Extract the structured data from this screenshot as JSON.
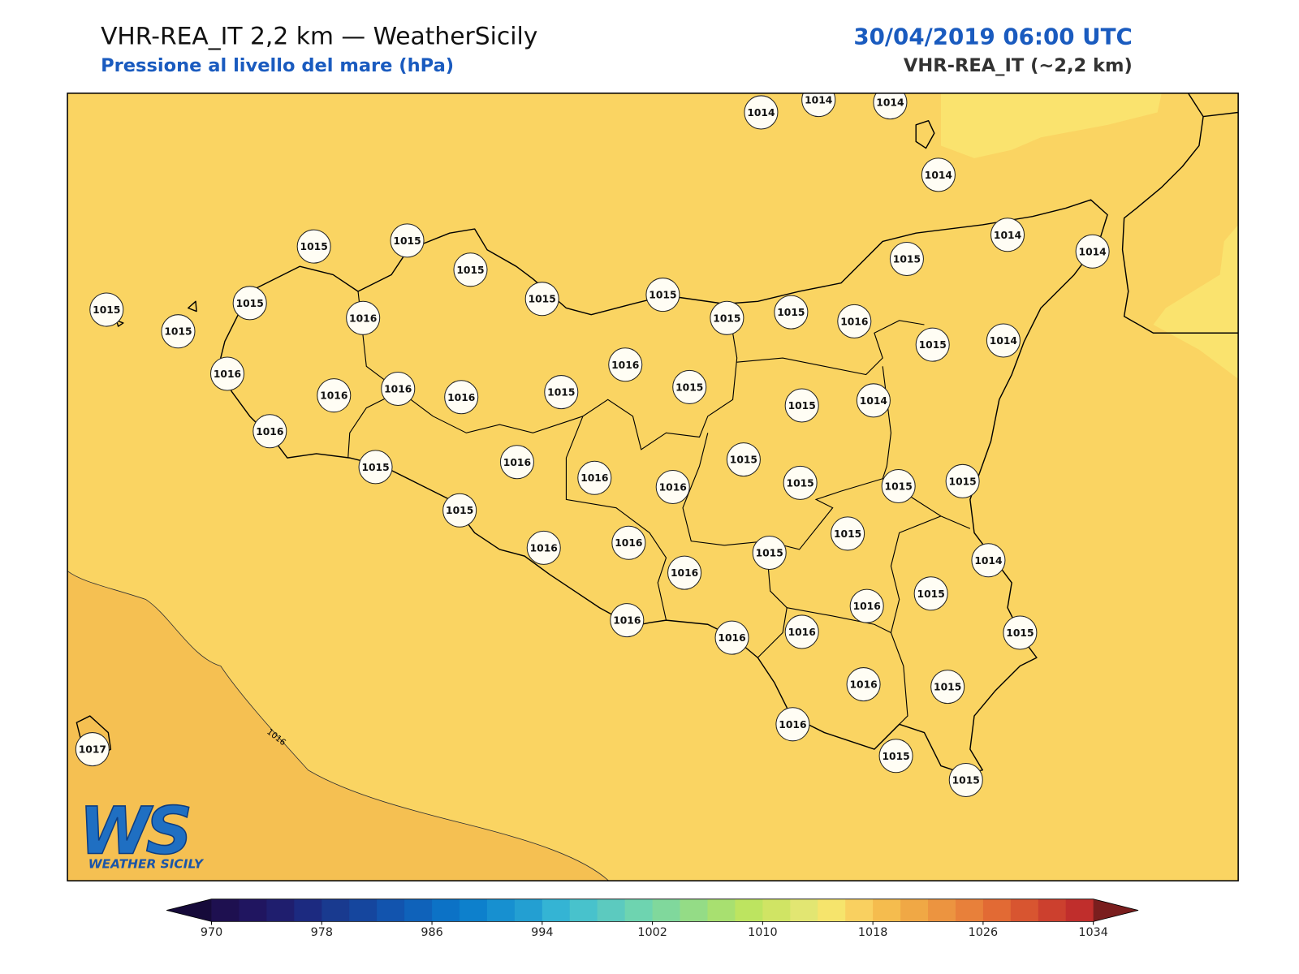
{
  "header": {
    "title": "VHR-REA_IT 2,2 km — WeatherSicily",
    "subtitle": "Pressione al livello del mare (hPa)",
    "date": "30/04/2019 06:00 UTC",
    "model": "VHR-REA_IT (~2,2 km)"
  },
  "map": {
    "background": "#fad462",
    "low_region_color": "#f5c052",
    "high_region_color": "#fae36e",
    "contour_label": "1016",
    "stations": [
      1014,
      1014,
      1014,
      1014,
      1014,
      1014,
      1015,
      1015,
      1015,
      1015,
      1015,
      1015,
      1015,
      1015,
      1016,
      1015,
      1014,
      1015,
      1015,
      1015,
      1016,
      1016,
      1016,
      1016,
      1016,
      1015,
      1016,
      1015,
      1015,
      1014,
      1016,
      1015,
      1016,
      1016,
      1016,
      1015,
      1015,
      1015,
      1015,
      1015,
      1016,
      1016,
      1016,
      1015,
      1015,
      1014,
      1016,
      1015,
      1016,
      1016,
      1016,
      1015,
      1016,
      1015,
      1016,
      1015,
      1015,
      1017
    ]
  },
  "logo": {
    "letters": "WS",
    "text": "WEATHER SICILY"
  },
  "colorbar": {
    "min": 970,
    "step": 2,
    "ticks": [
      970,
      978,
      986,
      994,
      1002,
      1010,
      1018,
      1026,
      1034
    ],
    "colors": [
      "#1e1050",
      "#201560",
      "#1f1e6e",
      "#1c2a80",
      "#193a8f",
      "#15469e",
      "#1254ae",
      "#0f62ba",
      "#0c72c6",
      "#0d80cc",
      "#1790d0",
      "#239fd2",
      "#34b4d4",
      "#48c2cc",
      "#5ccabf",
      "#6ed4b0",
      "#80d89c",
      "#94dc86",
      "#a8e070",
      "#bde460",
      "#d0e464",
      "#e2e672",
      "#f6e46c",
      "#f9d060",
      "#f5bc4e",
      "#f0a845",
      "#ec9440",
      "#e8803a",
      "#e26a34",
      "#d85530",
      "#cc402e",
      "#c02e2c"
    ],
    "under_color": "#160a3a",
    "over_color": "#7a1e1e"
  }
}
